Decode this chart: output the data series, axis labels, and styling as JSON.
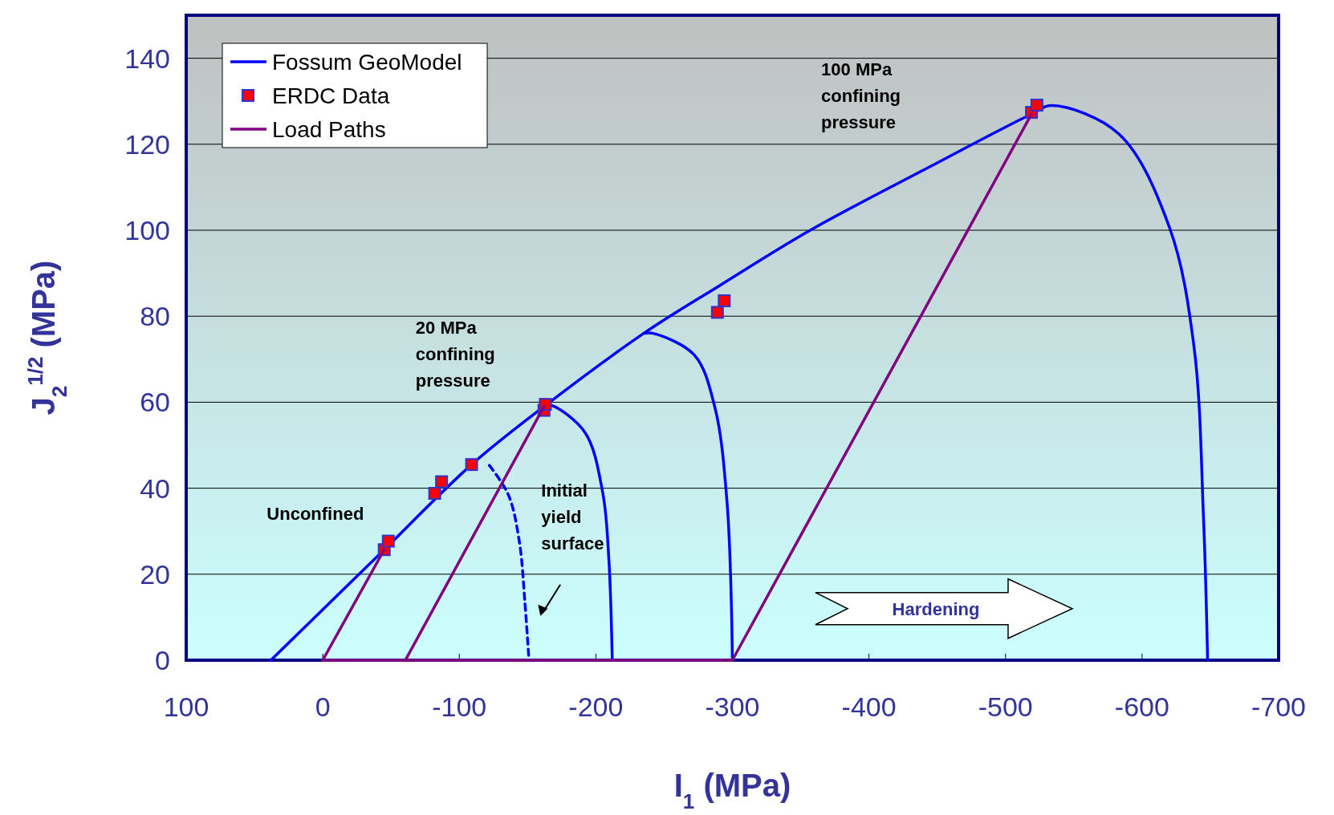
{
  "chart_data": {
    "type": "line",
    "xlabel": "I$_{1}$ (MPa)",
    "ylabel": "J$_{2}$$^{1/2}$ (MPa)",
    "xlim": [
      100,
      -700
    ],
    "xticks": [
      100,
      0,
      -100,
      -200,
      -300,
      -400,
      -500,
      -600,
      -700
    ],
    "ylim": [
      0,
      150
    ],
    "yticks": [
      0,
      20,
      40,
      60,
      80,
      100,
      120,
      140
    ],
    "grid": "y",
    "legend": "top left",
    "series": [
      {
        "name": "Fossum GeoModel",
        "color": "#0000ff",
        "x": [
          38,
          -45,
          -109,
          -162,
          -235,
          -290,
          -357,
          -443,
          -519,
          -534,
          -583,
          -620,
          -638,
          -645,
          -648
        ],
        "values": [
          0,
          25.7,
          45.5,
          59,
          76,
          87,
          100,
          114.5,
          127,
          129,
          122.4,
          100.7,
          73,
          33,
          0
        ]
      },
      {
        "color": "#0000ff",
        "x": [
          -162,
          -167,
          -192,
          -205,
          -209.5,
          -212
        ],
        "values": [
          59,
          59.3,
          53,
          39,
          23.5,
          0
        ]
      },
      {
        "color": "#0000ff",
        "x": [
          -235,
          -242,
          -272,
          -287,
          -296,
          -300
        ],
        "values": [
          76,
          76,
          71,
          59,
          37,
          0
        ]
      },
      {
        "color": "#0000ff",
        "line_style": "dashed",
        "x": [
          -122,
          -136,
          -144,
          -148,
          -151
        ],
        "values": [
          45.3,
          38.4,
          27.5,
          13.6,
          0
        ]
      },
      {
        "name": "ERDC Data",
        "type": "scatter",
        "marker": "square",
        "color": "#ff0000",
        "x": [
          -45,
          -48,
          -82,
          -87,
          -109,
          -162,
          -163,
          -289,
          -294,
          -519,
          -523
        ],
        "values": [
          25.7,
          27.7,
          38.8,
          41.5,
          45.5,
          58.1,
          59.5,
          80.9,
          83.6,
          127.4,
          129.1
        ]
      },
      {
        "name": "Load Paths",
        "color": "#800080",
        "x": [
          0,
          -300
        ],
        "values": [
          0,
          0
        ]
      },
      {
        "color": "#800080",
        "x": [
          0,
          -45
        ],
        "values": [
          0,
          25.7
        ]
      },
      {
        "color": "#800080",
        "x": [
          -60.5,
          -162
        ],
        "values": [
          0,
          59
        ]
      },
      {
        "color": "#800080",
        "x": [
          -300,
          -519
        ],
        "values": [
          0,
          127
        ]
      }
    ],
    "annotations": [
      "Unconfined",
      "20 MPa confining pressure",
      "100 MPa confining pressure",
      "Initial yield surface",
      "Hardening"
    ]
  }
}
